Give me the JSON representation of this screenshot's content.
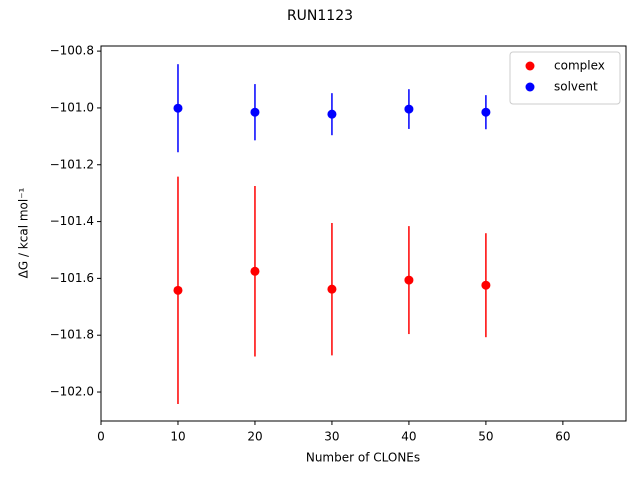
{
  "chart_data": {
    "type": "scatter",
    "title": "RUN1123",
    "x_label": "Number of CLONEs",
    "y_label": "ΔG / kcal mol⁻¹",
    "x": [
      10,
      20,
      30,
      40,
      50
    ],
    "series": [
      {
        "name": "complex",
        "color": "#ff0000",
        "values": [
          -101.642,
          -101.575,
          -101.638,
          -101.606,
          -101.624
        ],
        "errors": [
          0.4,
          0.3,
          0.233,
          0.19,
          0.183
        ]
      },
      {
        "name": "solvent",
        "color": "#0000ff",
        "values": [
          -101.001,
          -101.015,
          -101.022,
          -101.004,
          -101.015
        ],
        "errors": [
          0.155,
          0.099,
          0.074,
          0.07,
          0.06
        ]
      }
    ],
    "xlim": [
      0,
      68.2
    ],
    "xticks": [
      0,
      10,
      20,
      30,
      40,
      50,
      60
    ],
    "ylim": [
      -102.102,
      -100.782
    ],
    "yticks": [
      {
        "value": -102.0,
        "label": "−102.0"
      },
      {
        "value": -101.8,
        "label": "−101.8"
      },
      {
        "value": -101.6,
        "label": "−101.6"
      },
      {
        "value": -101.4,
        "label": "−101.4"
      },
      {
        "value": -101.2,
        "label": "−101.2"
      },
      {
        "value": -101.0,
        "label": "−101.0"
      },
      {
        "value": -100.8,
        "label": "−100.8"
      }
    ],
    "legend": "upper right"
  }
}
